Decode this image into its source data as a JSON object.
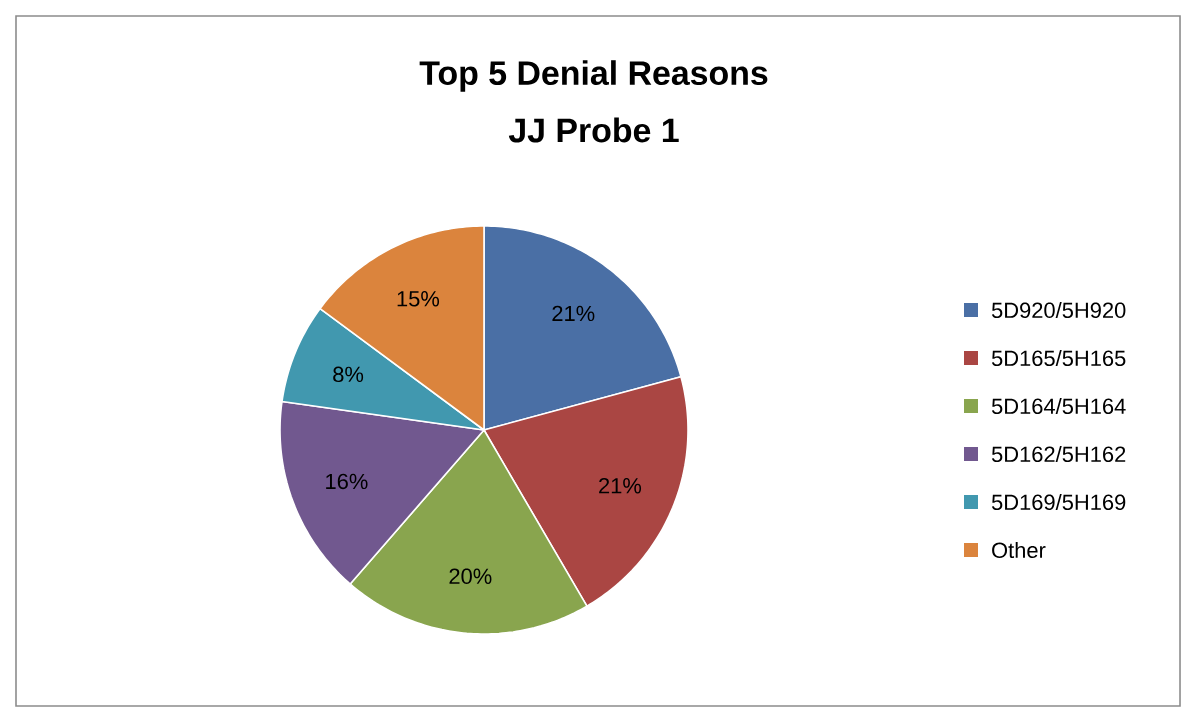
{
  "chart_data": {
    "type": "pie",
    "title": "Top 5 Denial Reasons",
    "subtitle": "JJ Probe 1",
    "categories": [
      "5D920/5H920",
      "5D165/5H165",
      "5D164/5H164",
      "5D162/5H162",
      "5D169/5H169",
      "Other"
    ],
    "values": [
      21,
      21,
      20,
      16,
      8,
      15
    ],
    "value_labels": [
      "21%",
      "21%",
      "20%",
      "16%",
      "8%",
      "15%"
    ],
    "colors": [
      "#4a6fa5",
      "#aa4643",
      "#89a54e",
      "#71588f",
      "#4198af",
      "#db843d"
    ],
    "legend": "right"
  }
}
